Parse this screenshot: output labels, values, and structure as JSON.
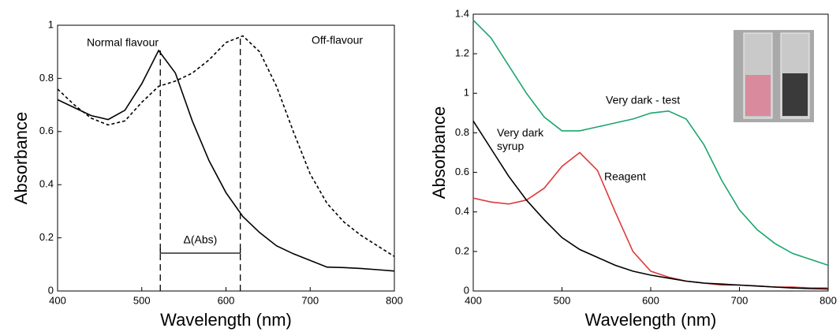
{
  "chart_data": [
    {
      "type": "line",
      "xlabel": "Wavelength (nm)",
      "ylabel": "Absorbance",
      "x": [
        400,
        420,
        440,
        460,
        480,
        500,
        520,
        540,
        560,
        580,
        600,
        620,
        640,
        660,
        680,
        700,
        720,
        740,
        760,
        780,
        800
      ],
      "series": [
        {
          "name": "Normal flavour",
          "color": "#000000",
          "dash": false,
          "values": [
            0.72,
            0.69,
            0.66,
            0.645,
            0.68,
            0.78,
            0.905,
            0.82,
            0.64,
            0.49,
            0.37,
            0.28,
            0.22,
            0.17,
            0.14,
            0.115,
            0.09,
            0.088,
            0.085,
            0.08,
            0.075
          ]
        },
        {
          "name": "Off-flavour",
          "color": "#000000",
          "dash": true,
          "values": [
            0.76,
            0.7,
            0.65,
            0.625,
            0.64,
            0.71,
            0.77,
            0.79,
            0.82,
            0.87,
            0.935,
            0.96,
            0.9,
            0.77,
            0.6,
            0.44,
            0.33,
            0.26,
            0.21,
            0.17,
            0.13
          ]
        }
      ],
      "vlines": [
        522,
        617
      ],
      "annotation": "Δ(Abs)",
      "xlim": [
        400,
        800
      ],
      "xticks": [
        400,
        500,
        600,
        700,
        800
      ],
      "ylim": [
        0,
        1
      ],
      "yticks": [
        0,
        0.2,
        0.4,
        0.6,
        0.8,
        1
      ]
    },
    {
      "type": "line",
      "xlabel": "Wavelength (nm)",
      "ylabel": "Absorbance",
      "x": [
        400,
        420,
        440,
        460,
        480,
        500,
        520,
        540,
        560,
        580,
        600,
        620,
        640,
        660,
        680,
        700,
        720,
        740,
        760,
        780,
        800
      ],
      "series": [
        {
          "name": "Very dark - test",
          "color": "#1aa66e",
          "dash": false,
          "values": [
            1.37,
            1.28,
            1.14,
            1.0,
            0.88,
            0.81,
            0.81,
            0.83,
            0.85,
            0.87,
            0.9,
            0.91,
            0.87,
            0.74,
            0.56,
            0.41,
            0.31,
            0.24,
            0.19,
            0.16,
            0.13
          ]
        },
        {
          "name": "Reagent",
          "color": "#e03a3a",
          "dash": false,
          "values": [
            0.47,
            0.45,
            0.44,
            0.46,
            0.52,
            0.63,
            0.7,
            0.61,
            0.4,
            0.2,
            0.1,
            0.07,
            0.05,
            0.04,
            0.03,
            0.03,
            0.025,
            0.02,
            0.02,
            0.015,
            0.015
          ]
        },
        {
          "name": "Very dark syrup",
          "color": "#000000",
          "dash": false,
          "values": [
            0.86,
            0.72,
            0.58,
            0.46,
            0.36,
            0.27,
            0.21,
            0.17,
            0.13,
            0.1,
            0.08,
            0.065,
            0.05,
            0.04,
            0.035,
            0.03,
            0.025,
            0.02,
            0.015,
            0.012,
            0.01
          ]
        }
      ],
      "xlim": [
        400,
        800
      ],
      "xticks": [
        400,
        500,
        600,
        700,
        800
      ],
      "ylim": [
        0,
        1.4
      ],
      "yticks": [
        0,
        0.2,
        0.4,
        0.6,
        0.8,
        1,
        1.2,
        1.4
      ]
    }
  ]
}
